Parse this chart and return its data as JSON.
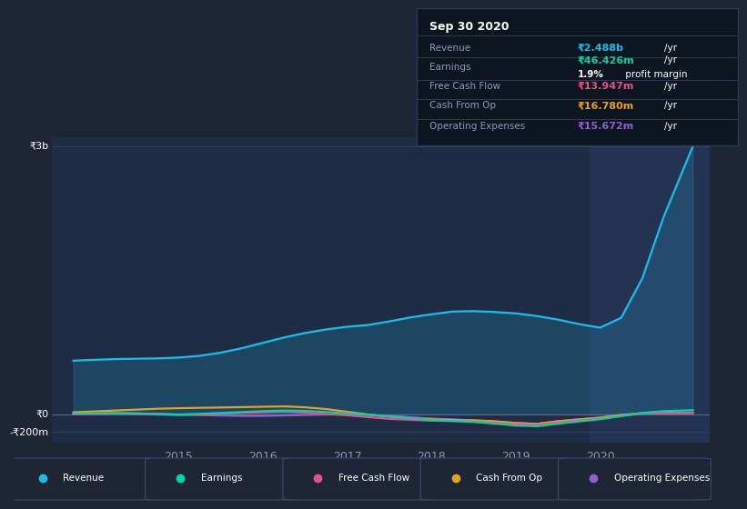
{
  "background_color": "#1e2535",
  "plot_bg_color": "#1e2d45",
  "highlight_bg_color": "#243352",
  "ylabel_top": "₹3b",
  "ylabel_zero": "₹0",
  "ylabel_bottom": "-₹200m",
  "x_ticks": [
    2015,
    2016,
    2017,
    2018,
    2019,
    2020
  ],
  "x_range": [
    2013.5,
    2021.3
  ],
  "y_range": [
    -320000000,
    3100000000
  ],
  "revenue": {
    "label": "Revenue",
    "color": "#1abde8",
    "x": [
      2013.75,
      2014.0,
      2014.25,
      2014.5,
      2014.75,
      2015.0,
      2015.25,
      2015.5,
      2015.75,
      2016.0,
      2016.25,
      2016.5,
      2016.75,
      2017.0,
      2017.25,
      2017.5,
      2017.75,
      2018.0,
      2018.25,
      2018.5,
      2018.75,
      2019.0,
      2019.25,
      2019.5,
      2019.75,
      2020.0,
      2020.25,
      2020.5,
      2020.75,
      2021.1
    ],
    "y": [
      600000000,
      610000000,
      618000000,
      622000000,
      626000000,
      635000000,
      655000000,
      690000000,
      740000000,
      800000000,
      860000000,
      910000000,
      950000000,
      980000000,
      1000000000,
      1040000000,
      1085000000,
      1120000000,
      1150000000,
      1155000000,
      1145000000,
      1130000000,
      1100000000,
      1060000000,
      1010000000,
      970000000,
      1080000000,
      1520000000,
      2200000000,
      3000000000
    ]
  },
  "earnings": {
    "label": "Earnings",
    "color": "#00d4aa",
    "x": [
      2013.75,
      2014.0,
      2014.25,
      2014.5,
      2014.75,
      2015.0,
      2015.25,
      2015.5,
      2015.75,
      2016.0,
      2016.25,
      2016.5,
      2016.75,
      2017.0,
      2017.25,
      2017.5,
      2017.75,
      2018.0,
      2018.25,
      2018.5,
      2018.75,
      2019.0,
      2019.25,
      2019.5,
      2019.75,
      2020.0,
      2020.25,
      2020.5,
      2020.75,
      2021.1
    ],
    "y": [
      8000000,
      12000000,
      15000000,
      10000000,
      3000000,
      -2000000,
      5000000,
      15000000,
      25000000,
      35000000,
      42000000,
      38000000,
      25000000,
      10000000,
      -5000000,
      -25000000,
      -45000000,
      -65000000,
      -75000000,
      -85000000,
      -105000000,
      -125000000,
      -135000000,
      -105000000,
      -80000000,
      -55000000,
      -20000000,
      15000000,
      35000000,
      46000000
    ]
  },
  "free_cash_flow": {
    "label": "Free Cash Flow",
    "color": "#e8508a",
    "x": [
      2013.75,
      2014.0,
      2014.25,
      2014.5,
      2014.75,
      2015.0,
      2015.25,
      2015.5,
      2015.75,
      2016.0,
      2016.25,
      2016.5,
      2016.75,
      2017.0,
      2017.25,
      2017.5,
      2017.75,
      2018.0,
      2018.25,
      2018.5,
      2018.75,
      2019.0,
      2019.25,
      2019.5,
      2019.75,
      2020.0,
      2020.25,
      2020.5,
      2020.75,
      2021.1
    ],
    "y": [
      3000000,
      5000000,
      8000000,
      4000000,
      -3000000,
      -8000000,
      -3000000,
      6000000,
      16000000,
      22000000,
      28000000,
      18000000,
      3000000,
      -12000000,
      -32000000,
      -52000000,
      -62000000,
      -72000000,
      -76000000,
      -82000000,
      -97000000,
      -112000000,
      -122000000,
      -92000000,
      -72000000,
      -50000000,
      -18000000,
      8000000,
      12000000,
      14000000
    ]
  },
  "cash_from_op": {
    "label": "Cash From Op",
    "color": "#e8a020",
    "x": [
      2013.75,
      2014.0,
      2014.25,
      2014.5,
      2014.75,
      2015.0,
      2015.25,
      2015.5,
      2015.75,
      2016.0,
      2016.25,
      2016.5,
      2016.75,
      2017.0,
      2017.25,
      2017.5,
      2017.75,
      2018.0,
      2018.25,
      2018.5,
      2018.75,
      2019.0,
      2019.25,
      2019.5,
      2019.75,
      2020.0,
      2020.25,
      2020.5,
      2020.75,
      2021.1
    ],
    "y": [
      22000000,
      32000000,
      42000000,
      52000000,
      62000000,
      68000000,
      72000000,
      76000000,
      80000000,
      84000000,
      88000000,
      78000000,
      58000000,
      28000000,
      -3000000,
      -28000000,
      -48000000,
      -58000000,
      -63000000,
      -68000000,
      -78000000,
      -98000000,
      -108000000,
      -78000000,
      -58000000,
      -38000000,
      -8000000,
      12000000,
      15000000,
      17000000
    ]
  },
  "operating_expenses": {
    "label": "Operating Expenses",
    "color": "#9060cc",
    "x": [
      2013.75,
      2014.0,
      2014.25,
      2014.5,
      2014.75,
      2015.0,
      2015.25,
      2015.5,
      2015.75,
      2016.0,
      2016.25,
      2016.5,
      2016.75,
      2017.0,
      2017.25,
      2017.5,
      2017.75,
      2018.0,
      2018.25,
      2018.5,
      2018.75,
      2019.0,
      2019.25,
      2019.5,
      2019.75,
      2020.0,
      2020.25,
      2020.5,
      2020.75,
      2021.1
    ],
    "y": [
      4000000,
      7000000,
      11000000,
      9000000,
      4000000,
      -4000000,
      -9000000,
      -14000000,
      -18000000,
      -18000000,
      -13000000,
      -8000000,
      -3000000,
      2000000,
      -8000000,
      -18000000,
      -33000000,
      -48000000,
      -58000000,
      -68000000,
      -83000000,
      -98000000,
      -108000000,
      -78000000,
      -58000000,
      -38000000,
      -8000000,
      7000000,
      13000000,
      16000000
    ]
  },
  "info_box": {
    "date": "Sep 30 2020",
    "revenue_label": "Revenue",
    "revenue_val": "₹2.488b",
    "revenue_color": "#1abde8",
    "earnings_label": "Earnings",
    "earnings_val": "₹46.426m",
    "earnings_color": "#00d4aa",
    "profit_margin": "1.9%",
    "fcf_label": "Free Cash Flow",
    "fcf_val": "₹13.947m",
    "fcf_color": "#e8508a",
    "cash_op_label": "Cash From Op",
    "cash_op_val": "₹16.780m",
    "cash_op_color": "#e8a020",
    "op_exp_label": "Operating Expenses",
    "op_exp_val": "₹15.672m",
    "op_exp_color": "#9060cc"
  },
  "highlight_x_start": 2019.88,
  "highlight_x_end": 2021.3,
  "zero_line_y": 0,
  "three_b_line_y": 3000000000,
  "minus_200m_line_y": -200000000
}
